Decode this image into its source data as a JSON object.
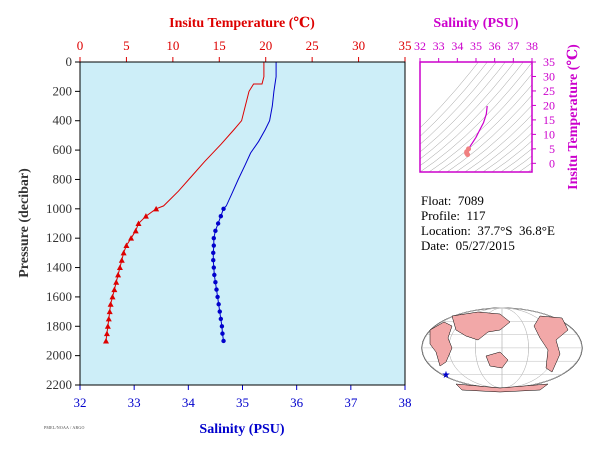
{
  "profile_chart": {
    "top_axis_title": "Insitu Temperature (℃)",
    "bottom_axis_title": "Salinity (PSU)",
    "left_axis_title": "Pressure (decibar)",
    "temp_ticks": [
      "0",
      "5",
      "10",
      "15",
      "20",
      "25",
      "30",
      "35"
    ],
    "sal_ticks": [
      "32",
      "33",
      "34",
      "35",
      "36",
      "37",
      "38"
    ],
    "pressure_ticks": [
      "0",
      "200",
      "400",
      "600",
      "800",
      "1000",
      "1200",
      "1400",
      "1600",
      "1800",
      "2000",
      "2200"
    ]
  },
  "ts_chart": {
    "top_axis_title": "Salinity (PSU)",
    "right_axis_title": "Insitu Temperature (℃)",
    "sal_ticks": [
      "32",
      "33",
      "34",
      "35",
      "36",
      "37",
      "38"
    ],
    "temp_ticks": [
      "35",
      "30",
      "25",
      "20",
      "15",
      "10",
      "5",
      "0"
    ]
  },
  "info": {
    "float": "Float:  7089",
    "profile": "Profile:  117",
    "location": "Location:  37.7°S  36.8°E",
    "date": "Date:  05/27/2015"
  },
  "footer_text": "PMEL/NOAA / ARGO",
  "colors": {
    "plot_bg": "#cdeef8",
    "temperature": "#dd0000",
    "salinity": "#0000cc",
    "ts_accent": "#cc00cc",
    "axis_text": "#333333",
    "land": "#f2a8a8",
    "map_marker": "#0000cc"
  },
  "chart_data": [
    {
      "type": "line",
      "yaxis": "pressure (decibar)",
      "ylim": [
        2200,
        0
      ],
      "series": [
        {
          "axis": "temperature",
          "xlim": [
            0,
            35
          ],
          "points": [
            [
              19.8,
              0
            ],
            [
              19.8,
              100
            ],
            [
              19.6,
              150
            ],
            [
              18.7,
              150
            ],
            [
              18.2,
              200
            ],
            [
              17.8,
              300
            ],
            [
              17.4,
              400
            ],
            [
              16.6,
              460
            ],
            [
              15.2,
              560
            ],
            [
              13.4,
              680
            ],
            [
              12,
              780
            ],
            [
              10.6,
              880
            ],
            [
              9,
              980
            ],
            [
              8.2,
              1000
            ],
            [
              7.1,
              1050
            ],
            [
              6.3,
              1100
            ],
            [
              6,
              1150
            ],
            [
              5.5,
              1200
            ],
            [
              5,
              1250
            ],
            [
              4.7,
              1300
            ],
            [
              4.5,
              1350
            ],
            [
              4.3,
              1400
            ],
            [
              4.1,
              1450
            ],
            [
              3.9,
              1500
            ],
            [
              3.7,
              1550
            ],
            [
              3.5,
              1600
            ],
            [
              3.3,
              1650
            ],
            [
              3.2,
              1700
            ],
            [
              3.1,
              1750
            ],
            [
              3,
              1800
            ],
            [
              2.9,
              1850
            ],
            [
              2.8,
              1900
            ]
          ],
          "marker_from_pressure": 1000
        },
        {
          "axis": "salinity",
          "xlim": [
            32,
            38
          ],
          "points": [
            [
              35.62,
              0
            ],
            [
              35.62,
              100
            ],
            [
              35.6,
              150
            ],
            [
              35.58,
              200
            ],
            [
              35.55,
              300
            ],
            [
              35.5,
              400
            ],
            [
              35.42,
              460
            ],
            [
              35.3,
              540
            ],
            [
              35.15,
              620
            ],
            [
              35.05,
              700
            ],
            [
              34.92,
              800
            ],
            [
              34.8,
              900
            ],
            [
              34.7,
              980
            ],
            [
              34.65,
              1000
            ],
            [
              34.6,
              1050
            ],
            [
              34.55,
              1100
            ],
            [
              34.5,
              1150
            ],
            [
              34.47,
              1200
            ],
            [
              34.47,
              1250
            ],
            [
              34.46,
              1300
            ],
            [
              34.46,
              1350
            ],
            [
              34.47,
              1400
            ],
            [
              34.48,
              1450
            ],
            [
              34.5,
              1500
            ],
            [
              34.52,
              1550
            ],
            [
              34.54,
              1600
            ],
            [
              34.56,
              1650
            ],
            [
              34.58,
              1700
            ],
            [
              34.6,
              1750
            ],
            [
              34.62,
              1800
            ],
            [
              34.63,
              1850
            ],
            [
              34.65,
              1900
            ]
          ],
          "marker_from_pressure": 1000
        }
      ]
    },
    {
      "type": "scatter",
      "x_axis": "salinity (PSU)",
      "y_axis": "insitu temperature",
      "xlim": [
        32,
        38
      ],
      "ylim": [
        -3,
        35
      ],
      "points": [
        [
          35.6,
          19.8
        ],
        [
          35.55,
          17
        ],
        [
          35.4,
          14
        ],
        [
          35.2,
          11.5
        ],
        [
          35,
          9
        ],
        [
          34.8,
          7
        ],
        [
          34.6,
          5
        ],
        [
          34.5,
          4
        ],
        [
          34.5,
          3.5
        ],
        [
          34.55,
          3
        ]
      ]
    }
  ]
}
